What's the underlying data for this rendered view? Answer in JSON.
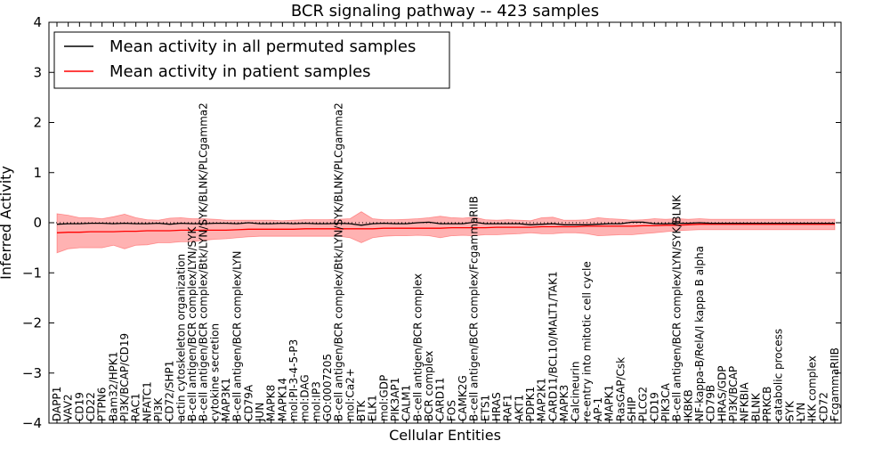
{
  "chart_data": {
    "type": "line",
    "title": "BCR signaling pathway -- 423 samples",
    "xlabel": "Cellular Entities",
    "ylabel": "Inferred Activity",
    "ylim": [
      -4,
      4
    ],
    "yticks": [
      "4",
      "3",
      "2",
      "1",
      "0",
      "−1",
      "−2",
      "−3",
      "−4"
    ],
    "ytick_values": [
      4,
      3,
      2,
      1,
      0,
      -1,
      -2,
      -3,
      -4
    ],
    "legend_position": "top-left",
    "categories": [
      "DAPP1",
      "VAV2",
      "CD19",
      "CD22",
      "PTPN6",
      "Bam32/HPK1",
      "PI3K/BCAP/CD19",
      "RAC1",
      "NFATC1",
      "PI3K",
      "CD72/SHP1",
      "actin cytoskeleton organization",
      "B-cell antigen/BCR complex/LYN/SYK",
      "B-cell antigen/BCR complex/Btk/LYN/SYK/BLNK/PLCgamma2",
      "cytokine secretion",
      "MAP3K1",
      "B-cell antigen/BCR complex/LYN",
      "CD79A",
      "JUN",
      "MAPK8",
      "MAPK14",
      "mol:PI-3-4-5-P3",
      "mol:DAG",
      "mol:IP3",
      "GO:0007205",
      "B-cell antigen/BCR complex/Btk/LYN/SYK/BLNK/PLCgamma2",
      "mol:Ca2+",
      "BTK",
      "ELK1",
      "mol:GDP",
      "PIK3AP1",
      "CALM1",
      "B-cell antigen/BCR complex",
      "BCR complex",
      "CARD11",
      "FOS",
      "CAMK2G",
      "B-cell antigen/BCR complex/FcgammaRIIB",
      "ETS1",
      "HRAS",
      "RAF1",
      "AKT1",
      "PDPK1",
      "MAP2K1",
      "CARD11/BCL10/MALT1/TAK1",
      "MAPK3",
      "Calcineurin",
      "re-entry into mitotic cell cycle",
      "AP-1",
      "MAPK1",
      "RasGAP/Csk",
      "SHIP",
      "PLCG2",
      "CD19",
      "PIK3CA",
      "B-cell antigen/BCR complex/LYN/SYK/BLNK",
      "IKBKB",
      "NF-kappa-B/RelA/I kappa B alpha",
      "CD79B",
      "HRAS/GDP",
      "PI3K/BCAP",
      "NFKBIA",
      "BLNK",
      "PRKCB",
      "catabolic process",
      "SYK",
      "LYN",
      "IKK complex",
      "CD72",
      "FcgammaRIIB"
    ],
    "series": [
      {
        "name": "Mean activity in all permuted samples",
        "color": "#000000",
        "values": [
          -0.03,
          -0.02,
          -0.02,
          -0.01,
          -0.01,
          -0.02,
          -0.01,
          -0.02,
          -0.02,
          -0.01,
          -0.03,
          -0.01,
          -0.02,
          -0.02,
          -0.01,
          -0.01,
          -0.02,
          0.0,
          -0.02,
          -0.02,
          -0.01,
          -0.02,
          -0.01,
          -0.02,
          -0.02,
          -0.01,
          -0.02,
          -0.05,
          -0.02,
          -0.01,
          -0.02,
          -0.02,
          0.0,
          0.01,
          -0.02,
          -0.02,
          -0.02,
          0.01,
          -0.02,
          -0.02,
          -0.02,
          -0.02,
          -0.04,
          -0.03,
          -0.02,
          -0.04,
          -0.04,
          -0.04,
          -0.03,
          -0.02,
          -0.02,
          0.01,
          0.01,
          -0.02,
          -0.02,
          -0.01,
          -0.01,
          0.0,
          -0.01,
          -0.01,
          -0.01,
          -0.01,
          -0.01,
          -0.01,
          -0.01,
          -0.01,
          -0.01,
          -0.01,
          -0.01,
          -0.01
        ]
      },
      {
        "name": "Mean activity in patient samples",
        "color": "#ff0000",
        "values": [
          -0.2,
          -0.19,
          -0.19,
          -0.18,
          -0.18,
          -0.18,
          -0.17,
          -0.17,
          -0.16,
          -0.16,
          -0.16,
          -0.15,
          -0.15,
          -0.15,
          -0.15,
          -0.15,
          -0.14,
          -0.13,
          -0.13,
          -0.13,
          -0.13,
          -0.13,
          -0.12,
          -0.12,
          -0.12,
          -0.12,
          -0.12,
          -0.12,
          -0.12,
          -0.11,
          -0.11,
          -0.11,
          -0.11,
          -0.11,
          -0.11,
          -0.1,
          -0.1,
          -0.1,
          -0.1,
          -0.09,
          -0.09,
          -0.09,
          -0.09,
          -0.08,
          -0.08,
          -0.08,
          -0.08,
          -0.07,
          -0.07,
          -0.07,
          -0.07,
          -0.07,
          -0.06,
          -0.06,
          -0.05,
          -0.05,
          -0.04,
          -0.03,
          -0.03,
          -0.03,
          -0.03,
          -0.03,
          -0.03,
          -0.03,
          -0.03,
          -0.03,
          -0.03,
          -0.03,
          -0.03,
          -0.03
        ]
      }
    ],
    "band": {
      "name": "patient activity spread",
      "color": "#ff0000",
      "upper": [
        0.18,
        0.15,
        0.1,
        0.1,
        0.08,
        0.12,
        0.17,
        0.1,
        0.06,
        0.05,
        0.09,
        0.1,
        0.08,
        0.08,
        0.07,
        0.05,
        0.05,
        0.05,
        0.05,
        0.05,
        0.04,
        0.05,
        0.06,
        0.06,
        0.06,
        0.07,
        0.08,
        0.22,
        0.08,
        0.06,
        0.06,
        0.07,
        0.08,
        0.1,
        0.13,
        0.1,
        0.09,
        0.11,
        0.06,
        0.05,
        0.06,
        0.05,
        0.04,
        0.1,
        0.11,
        0.05,
        0.05,
        0.06,
        0.1,
        0.08,
        0.07,
        0.05,
        0.06,
        0.08,
        0.07,
        0.08,
        0.07,
        0.08,
        0.07,
        0.07,
        0.07,
        0.07,
        0.07,
        0.07,
        0.07,
        0.07,
        0.07,
        0.07,
        0.07,
        0.07
      ],
      "lower": [
        -0.6,
        -0.52,
        -0.5,
        -0.5,
        -0.5,
        -0.45,
        -0.52,
        -0.45,
        -0.44,
        -0.4,
        -0.4,
        -0.38,
        -0.38,
        -0.35,
        -0.33,
        -0.32,
        -0.3,
        -0.28,
        -0.27,
        -0.27,
        -0.27,
        -0.27,
        -0.27,
        -0.27,
        -0.27,
        -0.27,
        -0.3,
        -0.4,
        -0.3,
        -0.27,
        -0.26,
        -0.26,
        -0.25,
        -0.26,
        -0.3,
        -0.26,
        -0.25,
        -0.26,
        -0.24,
        -0.24,
        -0.23,
        -0.22,
        -0.2,
        -0.22,
        -0.22,
        -0.2,
        -0.2,
        -0.22,
        -0.26,
        -0.25,
        -0.24,
        -0.24,
        -0.22,
        -0.2,
        -0.18,
        -0.16,
        -0.15,
        -0.14,
        -0.14,
        -0.14,
        -0.14,
        -0.14,
        -0.14,
        -0.14,
        -0.14,
        -0.14,
        -0.14,
        -0.14,
        -0.14,
        -0.14
      ]
    },
    "zero_line": {
      "y": 0,
      "style": "dotted",
      "color": "#000000"
    }
  }
}
